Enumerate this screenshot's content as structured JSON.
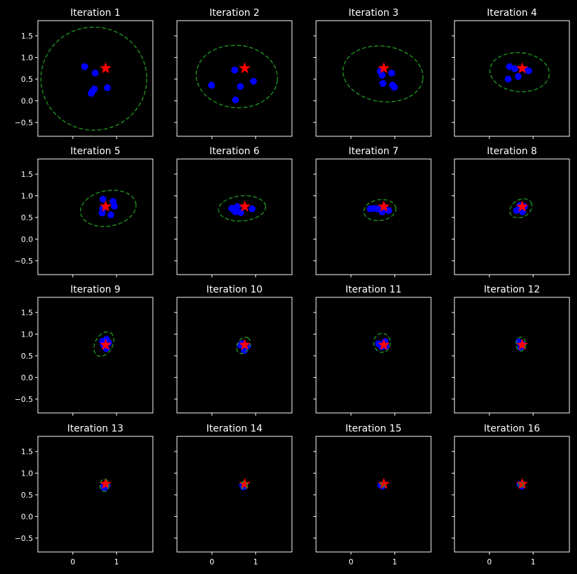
{
  "chart_data": {
    "type": "scatter",
    "layout": "4x4 grid",
    "shared_axes": true,
    "xlim": [
      -0.8,
      1.83
    ],
    "ylim": [
      -0.82,
      1.85
    ],
    "xticks": [
      0,
      1
    ],
    "yticks": [
      -0.5,
      0.0,
      0.5,
      1.0,
      1.5
    ],
    "xtick_labels": [
      "0",
      "1"
    ],
    "ytick_labels": [
      "−0.5",
      "0.0",
      "0.5",
      "1.0",
      "1.5"
    ],
    "grid": false,
    "background": "#000000",
    "colors": {
      "points": "#0000ff",
      "target": "#ff0000",
      "ellipse": "#1e8a1e",
      "axes": "#ffffff"
    },
    "target": {
      "x": 0.75,
      "y": 0.75,
      "marker": "star"
    },
    "panels": [
      {
        "title": "Iteration 1",
        "points": [
          [
            0.27,
            0.79
          ],
          [
            0.51,
            0.64
          ],
          [
            0.49,
            0.27
          ],
          [
            0.45,
            0.22
          ],
          [
            0.42,
            0.17
          ],
          [
            0.79,
            0.3
          ]
        ],
        "ellipse": {
          "cx": 0.48,
          "cy": 0.51,
          "rx": 1.21,
          "ry": 1.19,
          "angle": 0
        }
      },
      {
        "title": "Iteration 2",
        "points": [
          [
            0.52,
            0.71
          ],
          [
            -0.01,
            0.36
          ],
          [
            0.65,
            0.33
          ],
          [
            0.95,
            0.45
          ],
          [
            0.54,
            0.02
          ]
        ],
        "ellipse": {
          "cx": 0.57,
          "cy": 0.56,
          "rx": 0.93,
          "ry": 0.72,
          "angle": -5
        }
      },
      {
        "title": "Iteration 3",
        "points": [
          [
            0.67,
            0.68
          ],
          [
            0.71,
            0.59
          ],
          [
            0.93,
            0.64
          ],
          [
            0.73,
            0.4
          ],
          [
            0.95,
            0.36
          ],
          [
            0.99,
            0.31
          ]
        ],
        "ellipse": {
          "cx": 0.73,
          "cy": 0.62,
          "rx": 0.92,
          "ry": 0.64,
          "angle": -8
        }
      },
      {
        "title": "Iteration 4",
        "points": [
          [
            0.46,
            0.79
          ],
          [
            0.58,
            0.74
          ],
          [
            0.84,
            0.71
          ],
          [
            0.9,
            0.69
          ],
          [
            0.66,
            0.56
          ],
          [
            0.43,
            0.5
          ]
        ],
        "ellipse": {
          "cx": 0.69,
          "cy": 0.66,
          "rx": 0.68,
          "ry": 0.45,
          "angle": -5
        }
      },
      {
        "title": "Iteration 5",
        "points": [
          [
            0.69,
            0.92
          ],
          [
            0.92,
            0.87
          ],
          [
            0.95,
            0.76
          ],
          [
            0.67,
            0.6
          ],
          [
            0.87,
            0.56
          ],
          [
            0.68,
            0.7
          ]
        ],
        "ellipse": {
          "cx": 0.81,
          "cy": 0.71,
          "rx": 0.64,
          "ry": 0.41,
          "angle": 10
        }
      },
      {
        "title": "Iteration 6",
        "points": [
          [
            0.45,
            0.71
          ],
          [
            0.58,
            0.75
          ],
          [
            0.54,
            0.63
          ],
          [
            0.66,
            0.61
          ],
          [
            0.92,
            0.7
          ],
          [
            0.5,
            0.67
          ]
        ],
        "ellipse": {
          "cx": 0.69,
          "cy": 0.71,
          "rx": 0.54,
          "ry": 0.29,
          "angle": 5
        }
      },
      {
        "title": "Iteration 7",
        "points": [
          [
            0.44,
            0.7
          ],
          [
            0.52,
            0.71
          ],
          [
            0.6,
            0.7
          ],
          [
            0.71,
            0.63
          ],
          [
            0.86,
            0.66
          ],
          [
            0.75,
            0.74
          ]
        ],
        "ellipse": {
          "cx": 0.66,
          "cy": 0.67,
          "rx": 0.37,
          "ry": 0.24,
          "angle": 8
        }
      },
      {
        "title": "Iteration 8",
        "points": [
          [
            0.62,
            0.66
          ],
          [
            0.76,
            0.63
          ],
          [
            0.7,
            0.78
          ],
          [
            0.8,
            0.75
          ]
        ],
        "ellipse": {
          "cx": 0.72,
          "cy": 0.71,
          "rx": 0.27,
          "ry": 0.2,
          "angle": 30
        }
      },
      {
        "title": "Iteration 9",
        "points": [
          [
            0.77,
            0.88
          ],
          [
            0.68,
            0.83
          ],
          [
            0.76,
            0.67
          ],
          [
            0.82,
            0.8
          ],
          [
            0.7,
            0.75
          ]
        ],
        "ellipse": {
          "cx": 0.71,
          "cy": 0.77,
          "rx": 0.3,
          "ry": 0.2,
          "angle": 60
        }
      },
      {
        "title": "Iteration 10",
        "points": [
          [
            0.64,
            0.75
          ],
          [
            0.74,
            0.62
          ],
          [
            0.69,
            0.78
          ],
          [
            0.82,
            0.73
          ]
        ],
        "ellipse": {
          "cx": 0.72,
          "cy": 0.74,
          "rx": 0.2,
          "ry": 0.14,
          "angle": 60
        }
      },
      {
        "title": "Iteration 11",
        "points": [
          [
            0.63,
            0.78
          ],
          [
            0.78,
            0.83
          ],
          [
            0.7,
            0.71
          ],
          [
            0.8,
            0.72
          ]
        ],
        "ellipse": {
          "cx": 0.71,
          "cy": 0.8,
          "rx": 0.19,
          "ry": 0.22,
          "angle": 0
        }
      },
      {
        "title": "Iteration 12",
        "points": [
          [
            0.67,
            0.82
          ],
          [
            0.72,
            0.69
          ],
          [
            0.75,
            0.77
          ]
        ],
        "ellipse": {
          "cx": 0.72,
          "cy": 0.77,
          "rx": 0.11,
          "ry": 0.16,
          "angle": 0
        }
      },
      {
        "title": "Iteration 13",
        "points": [
          [
            0.7,
            0.7
          ],
          [
            0.78,
            0.72
          ],
          [
            0.72,
            0.65
          ]
        ],
        "ellipse": {
          "cx": 0.72,
          "cy": 0.72,
          "rx": 0.1,
          "ry": 0.14,
          "angle": 0
        }
      },
      {
        "title": "Iteration 14",
        "points": [
          [
            0.7,
            0.72
          ],
          [
            0.72,
            0.68
          ]
        ],
        "ellipse": {
          "cx": 0.74,
          "cy": 0.72,
          "rx": 0.07,
          "ry": 0.09,
          "angle": 0
        }
      },
      {
        "title": "Iteration 15",
        "points": [
          [
            0.68,
            0.72
          ],
          [
            0.72,
            0.7
          ]
        ],
        "ellipse": {
          "cx": 0.72,
          "cy": 0.73,
          "rx": 0.05,
          "ry": 0.05,
          "angle": 0
        }
      },
      {
        "title": "Iteration 16",
        "points": [
          [
            0.7,
            0.74
          ],
          [
            0.74,
            0.7
          ]
        ],
        "ellipse": {
          "cx": 0.72,
          "cy": 0.73,
          "rx": 0.06,
          "ry": 0.06,
          "angle": 0
        }
      }
    ]
  }
}
